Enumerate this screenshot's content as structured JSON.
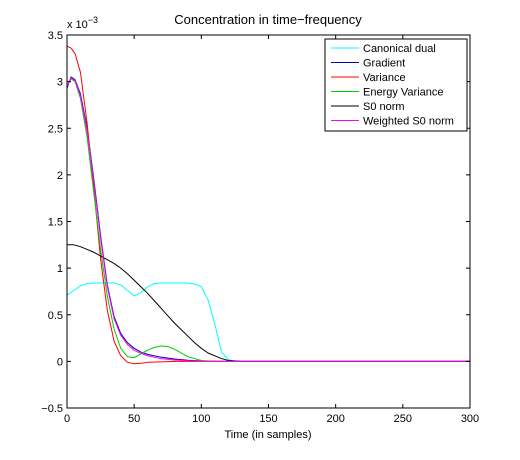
{
  "chart_data": {
    "type": "line",
    "title": "Concentration in time−frequency",
    "xlabel": "Time (in samples)",
    "ylabel": "",
    "y_exponent_label": "x 10",
    "y_exponent_power": "−3",
    "xlim": [
      0,
      300
    ],
    "ylim": [
      -0.5,
      3.5
    ],
    "x_ticks": [
      0,
      50,
      100,
      150,
      200,
      250,
      300
    ],
    "x_tick_labels": [
      "0",
      "50",
      "100",
      "150",
      "200",
      "250",
      "300"
    ],
    "y_ticks": [
      -0.5,
      0,
      0.5,
      1,
      1.5,
      2,
      2.5,
      3,
      3.5
    ],
    "y_tick_labels": [
      "−0.5",
      "0",
      "0.5",
      "1",
      "1.5",
      "2",
      "2.5",
      "3",
      "3.5"
    ],
    "grid": false,
    "legend_position": "top-right",
    "series": [
      {
        "name": "Canonical dual",
        "color": "#00ffff",
        "x": [
          0,
          5,
          10,
          15,
          20,
          25,
          30,
          35,
          40,
          45,
          50,
          55,
          60,
          65,
          70,
          75,
          80,
          85,
          90,
          95,
          100,
          105,
          110,
          115,
          120,
          125,
          130,
          150,
          200,
          250,
          300
        ],
        "y": [
          0.71,
          0.76,
          0.81,
          0.835,
          0.84,
          0.84,
          0.84,
          0.84,
          0.82,
          0.76,
          0.7,
          0.74,
          0.8,
          0.835,
          0.84,
          0.84,
          0.84,
          0.84,
          0.84,
          0.83,
          0.8,
          0.66,
          0.4,
          0.1,
          0.02,
          0.0,
          0.0,
          0.0,
          0.0,
          0.0,
          0.0
        ]
      },
      {
        "name": "Gradient",
        "color": "#0000aa",
        "x": [
          0,
          3,
          6,
          10,
          15,
          20,
          25,
          30,
          35,
          40,
          45,
          50,
          55,
          60,
          70,
          80,
          90,
          100,
          110,
          120,
          130,
          150,
          200,
          250,
          300
        ],
        "y": [
          2.93,
          3.05,
          3.02,
          2.87,
          2.5,
          1.95,
          1.35,
          0.82,
          0.48,
          0.3,
          0.2,
          0.14,
          0.1,
          0.075,
          0.045,
          0.025,
          0.012,
          0.005,
          0.002,
          0.0,
          0.0,
          0.0,
          0.0,
          0.0,
          0.0
        ]
      },
      {
        "name": "Variance",
        "color": "#ff0000",
        "x": [
          0,
          3,
          6,
          10,
          15,
          20,
          25,
          30,
          35,
          40,
          45,
          50,
          55,
          60,
          70,
          80,
          90,
          100,
          110,
          120,
          130,
          150,
          200,
          250,
          300
        ],
        "y": [
          3.38,
          3.36,
          3.3,
          3.1,
          2.55,
          1.85,
          1.1,
          0.55,
          0.22,
          0.06,
          -0.01,
          -0.025,
          -0.02,
          -0.01,
          -0.005,
          0.0,
          0.0,
          0.0,
          0.0,
          0.0,
          0.0,
          0.0,
          0.0,
          0.0,
          0.0
        ]
      },
      {
        "name": "Energy Variance",
        "color": "#00cc00",
        "x": [
          0,
          3,
          6,
          10,
          15,
          20,
          25,
          30,
          35,
          40,
          45,
          50,
          55,
          60,
          65,
          70,
          75,
          80,
          85,
          90,
          100,
          110,
          120,
          130,
          150,
          200,
          250,
          300
        ],
        "y": [
          2.95,
          3.03,
          3.0,
          2.82,
          2.4,
          1.8,
          1.2,
          0.7,
          0.35,
          0.14,
          0.05,
          0.04,
          0.08,
          0.12,
          0.15,
          0.165,
          0.16,
          0.13,
          0.09,
          0.05,
          0.01,
          0.0,
          0.0,
          0.0,
          0.0,
          0.0,
          0.0,
          0.0
        ]
      },
      {
        "name": "S0 norm",
        "color": "#000000",
        "x": [
          0,
          5,
          10,
          15,
          20,
          25,
          30,
          35,
          40,
          45,
          50,
          55,
          60,
          65,
          70,
          75,
          80,
          85,
          90,
          95,
          100,
          105,
          110,
          115,
          120,
          130,
          150,
          200,
          250,
          300
        ],
        "y": [
          1.25,
          1.25,
          1.23,
          1.2,
          1.17,
          1.13,
          1.09,
          1.05,
          1.0,
          0.94,
          0.87,
          0.8,
          0.73,
          0.65,
          0.57,
          0.49,
          0.41,
          0.34,
          0.27,
          0.2,
          0.14,
          0.09,
          0.06,
          0.03,
          0.01,
          0.0,
          0.0,
          0.0,
          0.0,
          0.0
        ]
      },
      {
        "name": "Weighted S0 norm",
        "color": "#ff00ff",
        "x": [
          0,
          3,
          6,
          10,
          15,
          20,
          25,
          30,
          35,
          40,
          45,
          50,
          55,
          60,
          70,
          80,
          90,
          100,
          110,
          120,
          130,
          150,
          200,
          250,
          300
        ],
        "y": [
          2.95,
          3.04,
          3.01,
          2.85,
          2.47,
          1.92,
          1.32,
          0.8,
          0.46,
          0.28,
          0.18,
          0.12,
          0.085,
          0.06,
          0.03,
          0.015,
          0.007,
          0.003,
          0.001,
          0.0,
          0.0,
          0.0,
          0.0,
          0.0,
          0.0
        ]
      }
    ]
  }
}
